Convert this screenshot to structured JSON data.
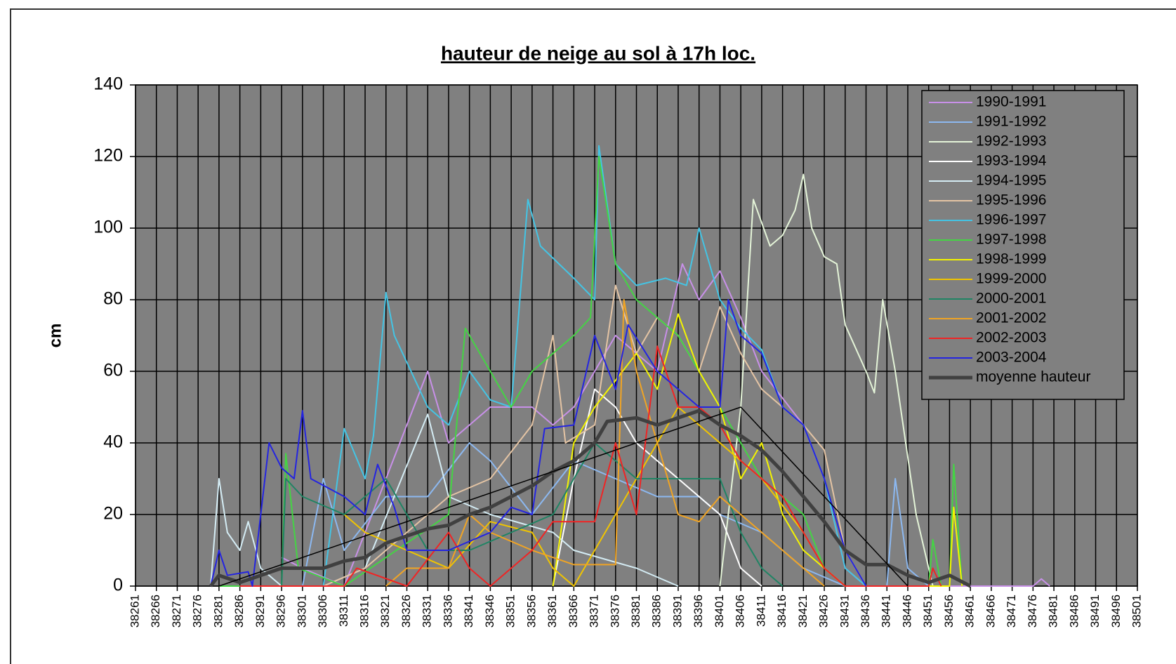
{
  "chart_data": {
    "type": "line",
    "title": "hauteur de neige au sol à 17h loc.",
    "y_label": "cm",
    "xlim": [
      38261,
      38501
    ],
    "ylim": [
      0,
      140
    ],
    "xticks": [
      38261,
      38266,
      38271,
      38276,
      38281,
      38286,
      38291,
      38296,
      38301,
      38306,
      38311,
      38316,
      38321,
      38326,
      38331,
      38336,
      38341,
      38346,
      38351,
      38356,
      38361,
      38366,
      38371,
      38376,
      38381,
      38386,
      38391,
      38396,
      38401,
      38406,
      38411,
      38416,
      38421,
      38426,
      38431,
      38436,
      38441,
      38446,
      38451,
      38456,
      38461,
      38466,
      38471,
      38476,
      38481,
      38486,
      38491,
      38496,
      38501
    ],
    "yticks": [
      0,
      20,
      40,
      60,
      80,
      100,
      120,
      140
    ],
    "grid": true,
    "legend": "upper right",
    "series": [
      {
        "name": "1990-1991",
        "color": "#c890e8",
        "x": [
          38296,
          38301,
          38311,
          38331,
          38336,
          38346,
          38356,
          38361,
          38366,
          38376,
          38386,
          38392,
          38396,
          38401,
          38406,
          38411,
          38421,
          38426,
          38431,
          38436,
          38476,
          38478,
          38480
        ],
        "values": [
          8,
          5,
          0,
          60,
          40,
          50,
          50,
          45,
          50,
          70,
          60,
          90,
          80,
          88,
          75,
          60,
          45,
          30,
          5,
          0,
          0,
          2,
          0
        ]
      },
      {
        "name": "1991-1992",
        "color": "#8cb8f0",
        "x": [
          38301,
          38306,
          38311,
          38321,
          38331,
          38341,
          38346,
          38356,
          38366,
          38376,
          38386,
          38396,
          38401,
          38411,
          38421,
          38431,
          38441,
          38443,
          38446,
          38451
        ],
        "values": [
          0,
          30,
          10,
          25,
          25,
          40,
          35,
          20,
          35,
          30,
          25,
          25,
          20,
          15,
          5,
          0,
          0,
          30,
          5,
          0
        ]
      },
      {
        "name": "1992-1993",
        "color": "#e4f4d8",
        "x": [
          38401,
          38406,
          38409,
          38413,
          38416,
          38419,
          38421,
          38423,
          38426,
          38429,
          38431,
          38436,
          38438,
          38440,
          38443,
          38448,
          38452
        ],
        "values": [
          0,
          50,
          108,
          95,
          98,
          105,
          115,
          100,
          92,
          90,
          73,
          60,
          54,
          80,
          60,
          20,
          0
        ]
      },
      {
        "name": "1993-1994",
        "color": "#ffffff",
        "x": [
          38361,
          38366,
          38371,
          38376,
          38381,
          38391,
          38401,
          38406,
          38411
        ],
        "values": [
          0,
          30,
          55,
          50,
          40,
          30,
          20,
          5,
          0
        ]
      },
      {
        "name": "1994-1995",
        "color": "#d4ecf4",
        "x": [
          38279,
          38281,
          38283,
          38286,
          38288,
          38291,
          38296,
          38306,
          38316,
          38331,
          38336,
          38346,
          38361,
          38366,
          38381,
          38391
        ],
        "values": [
          0,
          30,
          15,
          10,
          18,
          5,
          0,
          0,
          5,
          48,
          25,
          20,
          15,
          10,
          5,
          0
        ]
      },
      {
        "name": "1995-1996",
        "color": "#e4c4a4",
        "x": [
          38306,
          38316,
          38326,
          38336,
          38346,
          38356,
          38361,
          38364,
          38371,
          38376,
          38381,
          38386,
          38391,
          38396,
          38401,
          38406,
          38411,
          38416,
          38421,
          38426,
          38431,
          38436
        ],
        "values": [
          0,
          5,
          15,
          25,
          30,
          45,
          70,
          40,
          45,
          84,
          65,
          75,
          70,
          60,
          78,
          65,
          55,
          50,
          45,
          38,
          10,
          0
        ]
      },
      {
        "name": "1996-1997",
        "color": "#44c4e4",
        "x": [
          38306,
          38311,
          38316,
          38318,
          38321,
          38323,
          38331,
          38336,
          38341,
          38346,
          38351,
          38355,
          38358,
          38366,
          38371,
          38372,
          38376,
          38381,
          38388,
          38393,
          38396,
          38401,
          38406,
          38411,
          38416,
          38421,
          38426,
          38431,
          38436
        ],
        "values": [
          0,
          44,
          30,
          42,
          82,
          70,
          50,
          45,
          60,
          52,
          50,
          108,
          95,
          86,
          80,
          123,
          90,
          84,
          86,
          84,
          100,
          80,
          72,
          66,
          50,
          45,
          30,
          5,
          0
        ]
      },
      {
        "name": "1997-1998",
        "color": "#44d444",
        "x": [
          38281,
          38296,
          38297,
          38300,
          38311,
          38336,
          38340,
          38346,
          38351,
          38356,
          38361,
          38366,
          38370,
          38372,
          38376,
          38381,
          38391,
          38401,
          38411,
          38421,
          38426,
          38431,
          38451,
          38452,
          38454,
          38456,
          38457,
          38459
        ],
        "values": [
          0,
          0,
          37,
          5,
          0,
          20,
          72,
          60,
          50,
          60,
          65,
          70,
          75,
          120,
          90,
          80,
          70,
          50,
          30,
          20,
          5,
          0,
          0,
          13,
          0,
          0,
          34,
          0
        ]
      },
      {
        "name": "1998-1999",
        "color": "#f4f400",
        "x": [
          38361,
          38366,
          38371,
          38381,
          38386,
          38391,
          38396,
          38401,
          38406,
          38411,
          38416,
          38421,
          38426,
          38431,
          38456,
          38457,
          38459
        ],
        "values": [
          0,
          40,
          50,
          65,
          55,
          76,
          60,
          50,
          30,
          40,
          20,
          10,
          5,
          0,
          0,
          22,
          0
        ]
      },
      {
        "name": "1999-2000",
        "color": "#f0c400",
        "x": [
          38311,
          38316,
          38326,
          38336,
          38346,
          38356,
          38361,
          38366,
          38371,
          38381,
          38391,
          38401,
          38411,
          38421,
          38426,
          38431
        ],
        "values": [
          20,
          15,
          10,
          5,
          18,
          15,
          5,
          0,
          10,
          30,
          50,
          40,
          30,
          15,
          5,
          0
        ]
      },
      {
        "name": "2000-2001",
        "color": "#208464",
        "x": [
          38296,
          38297,
          38301,
          38311,
          38321,
          38331,
          38341,
          38351,
          38361,
          38371,
          38381,
          38391,
          38401,
          38406,
          38411,
          38416
        ],
        "values": [
          0,
          30,
          25,
          20,
          30,
          10,
          10,
          15,
          20,
          40,
          30,
          30,
          30,
          15,
          5,
          0
        ]
      },
      {
        "name": "2001-2002",
        "color": "#f0a424",
        "x": [
          38321,
          38326,
          38336,
          38341,
          38346,
          38356,
          38361,
          38366,
          38376,
          38378,
          38381,
          38386,
          38391,
          38396,
          38401,
          38406,
          38411,
          38416,
          38421,
          38426
        ],
        "values": [
          0,
          5,
          5,
          20,
          15,
          10,
          8,
          6,
          6,
          80,
          60,
          40,
          20,
          18,
          25,
          20,
          15,
          10,
          5,
          0
        ]
      },
      {
        "name": "2002-2003",
        "color": "#f02424",
        "x": [
          38286,
          38311,
          38314,
          38326,
          38336,
          38341,
          38346,
          38356,
          38361,
          38371,
          38376,
          38381,
          38386,
          38391,
          38396,
          38401,
          38406,
          38411,
          38416,
          38421,
          38426,
          38431,
          38451,
          38452,
          38454
        ],
        "values": [
          0,
          0,
          5,
          0,
          15,
          5,
          0,
          10,
          18,
          18,
          40,
          20,
          67,
          50,
          50,
          45,
          35,
          30,
          25,
          15,
          5,
          0,
          0,
          5,
          0
        ]
      },
      {
        "name": "2003-2004",
        "color": "#2424e0",
        "x": [
          38279,
          38281,
          38283,
          38288,
          38289,
          38291,
          38293,
          38296,
          38299,
          38301,
          38303,
          38311,
          38316,
          38319,
          38323,
          38326,
          38336,
          38346,
          38351,
          38356,
          38359,
          38366,
          38371,
          38376,
          38379,
          38386,
          38391,
          38396,
          38401,
          38403,
          38406,
          38411,
          38416,
          38421,
          38426,
          38431,
          38436
        ],
        "values": [
          0,
          10,
          3,
          4,
          0,
          20,
          40,
          33,
          30,
          49,
          30,
          25,
          20,
          34,
          22,
          10,
          10,
          15,
          22,
          20,
          44,
          45,
          70,
          55,
          73,
          60,
          55,
          50,
          50,
          80,
          70,
          65,
          50,
          45,
          30,
          10,
          0
        ]
      },
      {
        "name": "moyenne hauteur",
        "color": "#404040",
        "x": [
          38279,
          38281,
          38286,
          38291,
          38296,
          38301,
          38306,
          38311,
          38316,
          38321,
          38326,
          38331,
          38336,
          38341,
          38346,
          38351,
          38356,
          38361,
          38366,
          38371,
          38374,
          38381,
          38386,
          38391,
          38396,
          38401,
          38406,
          38411,
          38416,
          38421,
          38426,
          38431,
          38436,
          38441,
          38446,
          38451,
          38456,
          38461
        ],
        "values": [
          0,
          3,
          1,
          3,
          5,
          5,
          5,
          7,
          8,
          12,
          14,
          16,
          17,
          20,
          22,
          25,
          28,
          32,
          35,
          40,
          46,
          47,
          45,
          47,
          49,
          45,
          42,
          38,
          32,
          25,
          18,
          10,
          6,
          6,
          3,
          1,
          3,
          0
        ]
      }
    ],
    "trend_line": {
      "color": "#000000",
      "x": [
        38281,
        38406,
        38446
      ],
      "values": [
        0,
        50,
        0
      ]
    }
  }
}
